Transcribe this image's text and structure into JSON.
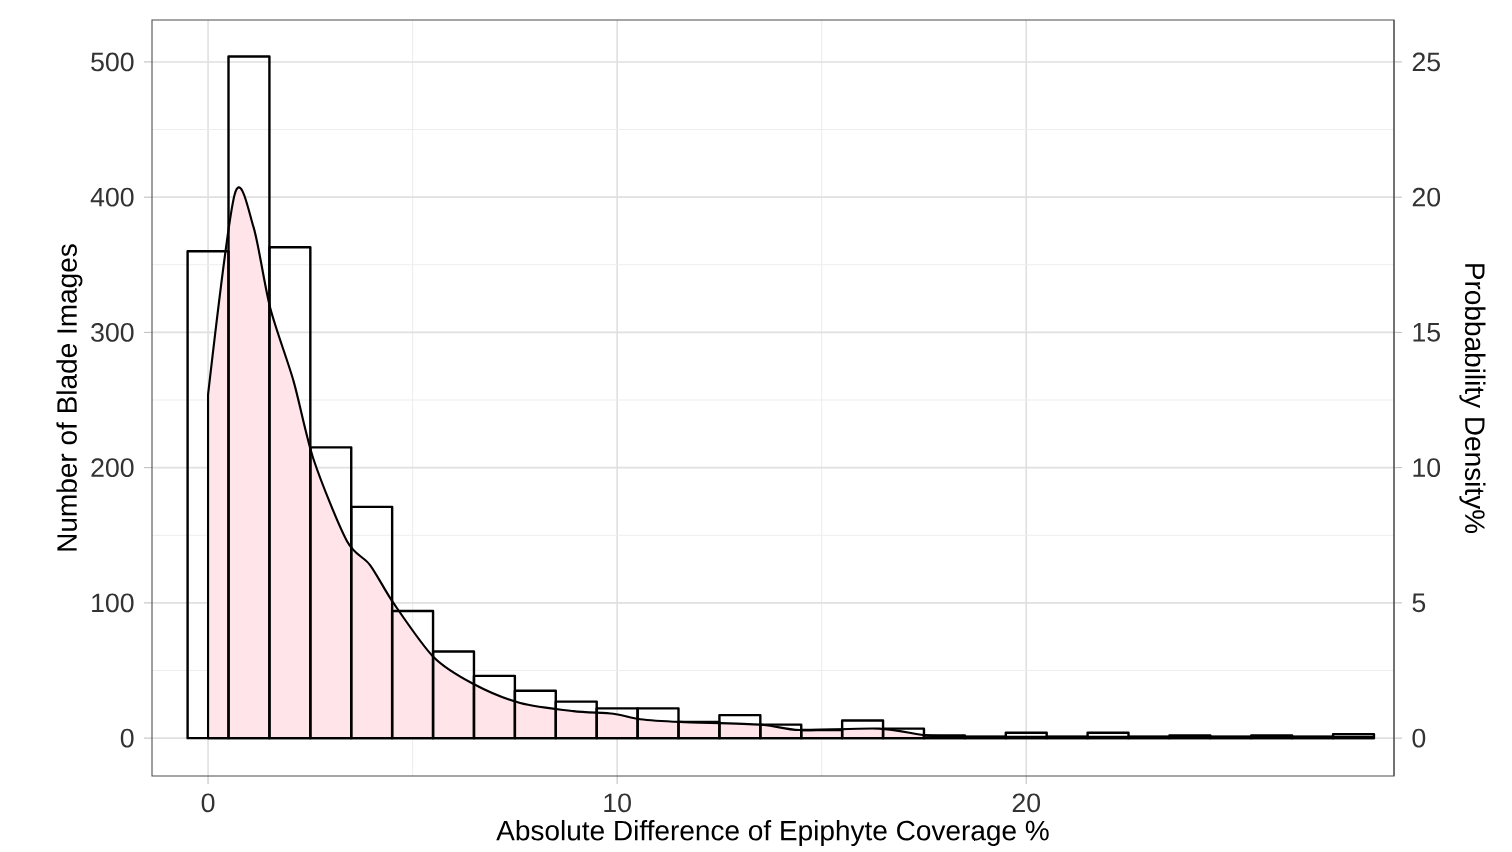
{
  "chart_data": {
    "type": "histogram",
    "xlabel": "Absolute Difference of Epiphyte Coverage %",
    "ylabel": "Number of Blade Images",
    "y2label": "Probbability Density%",
    "bins": [
      -0.5,
      0.5,
      1.5,
      2.5,
      3.5,
      4.5,
      5.5,
      6.5,
      7.5,
      8.5,
      9.5,
      10.5,
      11.5,
      12.5,
      13.5,
      14.5,
      15.5,
      16.5,
      17.5,
      18.5,
      19.5,
      20.5,
      21.5,
      22.5,
      23.5,
      24.5,
      25.5,
      26.5,
      27.5,
      28.5
    ],
    "values": [
      360,
      504,
      363,
      215,
      171,
      94,
      64,
      46,
      35,
      27,
      22,
      22,
      12,
      17,
      10,
      6,
      13,
      7,
      2,
      1,
      4,
      1,
      4,
      1,
      2,
      1,
      2,
      1,
      3
    ],
    "color": "#000000",
    "series": [
      {
        "type": "area",
        "axis": "y2",
        "color": "#ffe4ea",
        "x": [
          0,
          0.65,
          1.11,
          1.52,
          2.09,
          2.58,
          3.39,
          3.96,
          4.53,
          5.51,
          6.49,
          7.63,
          8.93,
          9.91,
          10.56,
          11.54,
          13.5,
          14.47,
          16.4,
          17.55,
          18.5,
          20,
          22,
          24,
          26,
          28.5
        ],
        "values": [
          12.7,
          20.1,
          18.9,
          15.9,
          13.2,
          10.3,
          7.3,
          6.4,
          5.0,
          3.0,
          2.0,
          1.3,
          1.0,
          0.9,
          0.7,
          0.6,
          0.5,
          0.3,
          0.35,
          0.1,
          0.05,
          0.05,
          0.05,
          0.05,
          0.05,
          0.05
        ]
      }
    ],
    "xlim": [
      -1.37,
      28.99
    ],
    "ylim": [
      -28,
      531
    ],
    "y2lim": [
      -1.4,
      26.55
    ],
    "xticks": [
      0,
      10,
      20
    ],
    "yticks": [
      0,
      100,
      200,
      300,
      400,
      500
    ],
    "y2ticks": [
      0,
      5,
      10,
      15,
      20,
      25
    ],
    "grid": true
  }
}
